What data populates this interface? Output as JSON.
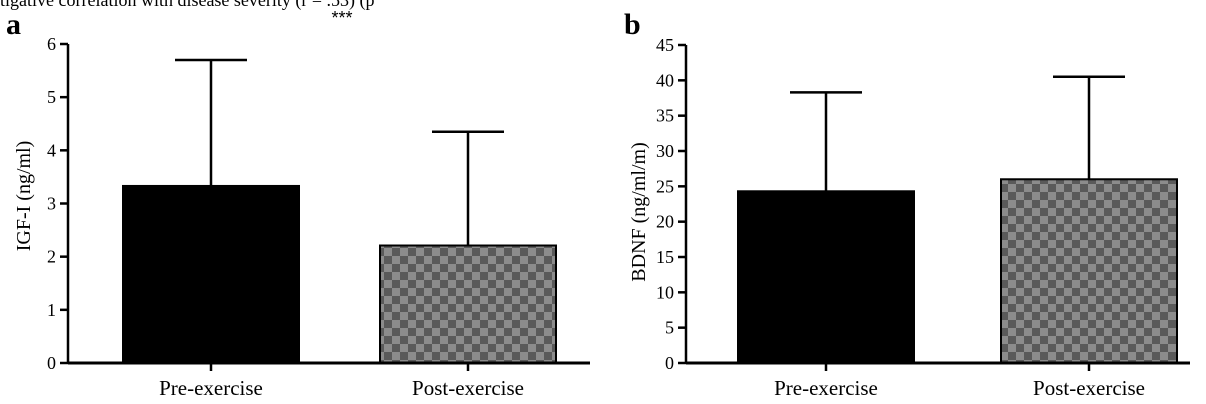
{
  "caption_fragment": "tigative correlation with disease severity (r = .53) (p",
  "chart_data": [
    {
      "type": "bar",
      "panel": "a",
      "title": "",
      "xlabel": "",
      "ylabel": "IGF-I (ng/ml)",
      "categories": [
        "Pre-exercise",
        "Post-exercise"
      ],
      "values": [
        3.33,
        2.21
      ],
      "error_upper": [
        5.7,
        4.35
      ],
      "ylim": [
        0,
        6
      ],
      "yticks": [
        0,
        1,
        2,
        3,
        4,
        5,
        6
      ],
      "annotations": [
        "***"
      ],
      "fills": [
        "solid-black",
        "grey-checkerboard"
      ]
    },
    {
      "type": "bar",
      "panel": "b",
      "title": "",
      "xlabel": "",
      "ylabel": "BDNF (ng/ml/m)",
      "categories": [
        "Pre-exercise",
        "Post-exercise"
      ],
      "values": [
        24.3,
        26.0
      ],
      "error_upper": [
        38.3,
        40.5
      ],
      "ylim": [
        0,
        45
      ],
      "yticks": [
        0,
        5,
        10,
        15,
        20,
        25,
        30,
        35,
        40,
        45
      ],
      "annotations": [],
      "fills": [
        "solid-black",
        "grey-checkerboard"
      ]
    }
  ],
  "colors": {
    "pre_bar": "#000000",
    "post_light": "#8c8c8c",
    "post_dark": "#5a5a5a",
    "axis": "#000000"
  }
}
